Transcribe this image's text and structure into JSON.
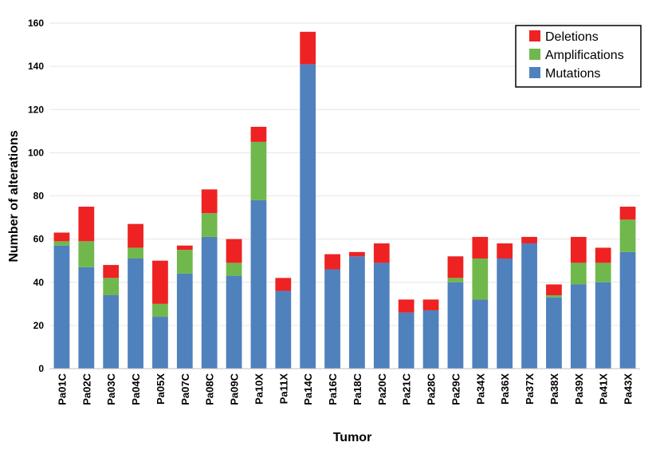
{
  "chart_data": {
    "type": "bar",
    "stacked": true,
    "xlabel": "Tumor",
    "ylabel": "Number of alterations",
    "ylim": [
      0,
      160
    ],
    "yticks": [
      0,
      20,
      40,
      60,
      80,
      100,
      120,
      140,
      160
    ],
    "grid": true,
    "legend_position": "top-right",
    "categories": [
      "Pa01C",
      "Pa02C",
      "Pa03C",
      "Pa04C",
      "Pa05X",
      "Pa07C",
      "Pa08C",
      "Pa09C",
      "Pa10X",
      "Pa11X",
      "Pa14C",
      "Pa16C",
      "Pa18C",
      "Pa20C",
      "Pa21C",
      "Pa28C",
      "Pa29C",
      "Pa34X",
      "Pa36X",
      "Pa37X",
      "Pa38X",
      "Pa39X",
      "Pa41X",
      "Pa43X"
    ],
    "series": [
      {
        "name": "Mutations",
        "color": "#4f81bd",
        "values": [
          57,
          47,
          34,
          51,
          24,
          44,
          61,
          43,
          78,
          36,
          141,
          46,
          52,
          49,
          26,
          27,
          40,
          32,
          51,
          58,
          33,
          39,
          40,
          54
        ]
      },
      {
        "name": "Amplifications",
        "color": "#70b84c",
        "values": [
          2,
          12,
          8,
          5,
          6,
          11,
          11,
          6,
          27,
          0,
          0,
          0,
          0,
          0,
          0,
          0,
          2,
          19,
          0,
          0,
          1,
          10,
          9,
          15
        ]
      },
      {
        "name": "Deletions",
        "color": "#ee2222",
        "values": [
          4,
          16,
          6,
          11,
          20,
          2,
          11,
          11,
          7,
          6,
          15,
          7,
          2,
          9,
          6,
          5,
          10,
          10,
          7,
          3,
          5,
          12,
          7,
          6
        ]
      }
    ]
  }
}
